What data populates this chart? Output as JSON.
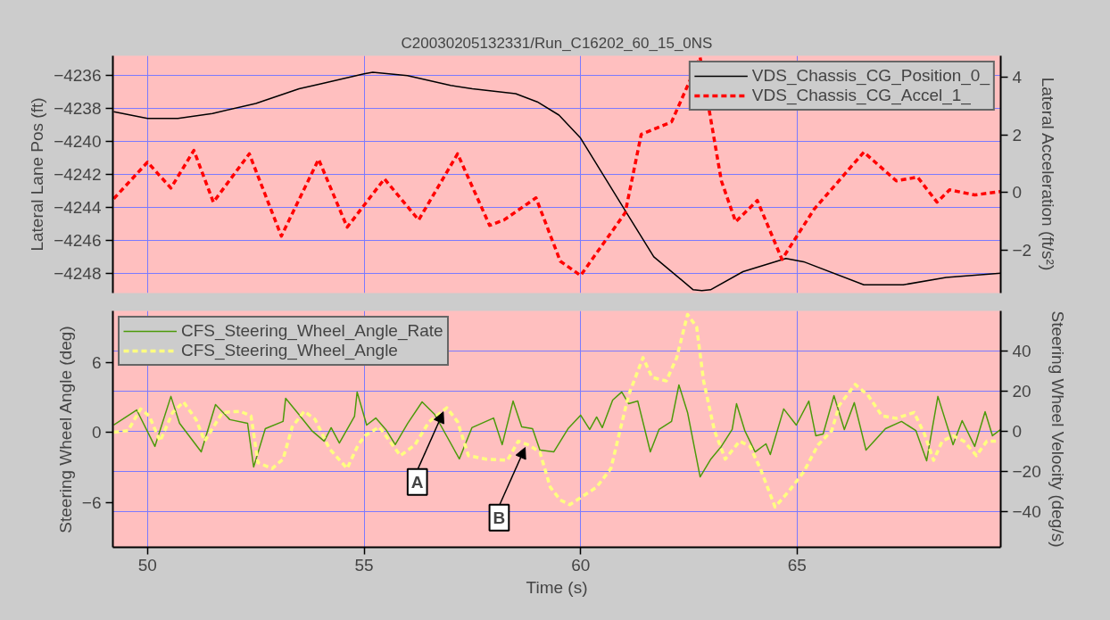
{
  "chart_data": [
    {
      "type": "line",
      "title": "C20030205132331/Run_C16202_60_15_0NS",
      "ylabel": "Lateral Lane Pos (ft)",
      "y2label": "Lateral Acceleration (ft/s²)",
      "xlim": [
        49.2,
        69.7
      ],
      "xticks": [
        50,
        55,
        60,
        65
      ],
      "ylim": [
        -4249.2,
        -4234.8
      ],
      "yticks": [
        -4236,
        -4238,
        -4240,
        -4242,
        -4244,
        -4246,
        -4248
      ],
      "y2lim": [
        -3.5,
        4.75
      ],
      "y2ticks": [
        4,
        2,
        0,
        -2
      ],
      "grid": true,
      "legend": "top right",
      "tick_labels": "y",
      "series": [
        {
          "name": "VDS_Chassis_CG_Position_0_",
          "color": "#000000",
          "line_style": "solid",
          "x": [
            49.22,
            50,
            50.7,
            51.5,
            52.5,
            53.5,
            54,
            55,
            55.2,
            56,
            57,
            57.5,
            58.5,
            59,
            59.5,
            60,
            61.03,
            61.69,
            62.6,
            62.8,
            63.0,
            63.75,
            64.74,
            65.15,
            66.54,
            67.45,
            68.44,
            69.7
          ],
          "values": [
            -4238.2,
            -4238.6,
            -4238.6,
            -4238.3,
            -4237.7,
            -4236.8,
            -4236.5,
            -4235.9,
            -4235.8,
            -4236.0,
            -4236.6,
            -4236.8,
            -4237.1,
            -4237.6,
            -4238.4,
            -4239.8,
            -4244.2,
            -4247.0,
            -4249.0,
            -4249.05,
            -4249.0,
            -4247.9,
            -4247.1,
            -4247.3,
            -4248.7,
            -4248.7,
            -4248.25,
            -4248.0
          ]
        },
        {
          "name": "VDS_Chassis_CG_Accel_1_",
          "color": "#ff0000",
          "line_style": "dashed",
          "axis": "y2",
          "x": [
            49.22,
            50.0,
            50.54,
            51.07,
            51.52,
            52.35,
            53.09,
            53.95,
            54.61,
            55.47,
            56.26,
            57.16,
            57.9,
            58.23,
            58.97,
            59.53,
            60.0,
            61.03,
            61.4,
            62.1,
            62.76,
            63.25,
            63.58,
            64.08,
            64.65,
            65.39,
            66.54,
            67.29,
            67.78,
            68.23,
            68.52,
            69.1,
            69.7
          ],
          "values": [
            -0.22,
            1.05,
            0.15,
            1.46,
            -0.34,
            1.34,
            -1.52,
            1.15,
            -1.21,
            0.47,
            -0.96,
            1.34,
            -1.15,
            -0.96,
            -0.19,
            -2.39,
            -2.89,
            -0.71,
            2.02,
            2.45,
            4.69,
            0.4,
            -1.02,
            -0.28,
            -2.33,
            -0.59,
            1.4,
            0.4,
            0.53,
            -0.34,
            0.09,
            -0.09,
            0.03
          ]
        }
      ]
    },
    {
      "type": "line",
      "xlabel": "Time (s)",
      "ylabel": "Steering Wheel Angle (deg)",
      "y2label": "Steering Wheel Velocity (deg/s)",
      "xlim": [
        49.2,
        69.7
      ],
      "xticks": [
        50,
        55,
        60,
        65
      ],
      "ylim": [
        -9.85,
        10.4
      ],
      "yticks": [
        6,
        0,
        -6
      ],
      "y2lim": [
        -57.5,
        59.7
      ],
      "y2ticks": [
        40,
        20,
        0,
        -20,
        -40
      ],
      "grid": true,
      "legend": "top left",
      "annotations": [
        {
          "text": "A",
          "x": 56.83,
          "y": 1.75
        },
        {
          "text": "B",
          "x": 58.72,
          "y": -1.3
        }
      ],
      "series": [
        {
          "name": "CFS_Steering_Wheel_Angle_Rate",
          "color": "#4c9a0a",
          "line_style": "solid",
          "axis": "y2",
          "x": [
            49.22,
            49.75,
            50.17,
            50.54,
            50.74,
            51.24,
            51.57,
            51.9,
            52.31,
            52.45,
            52.72,
            53.13,
            53.19,
            53.46,
            53.79,
            54.08,
            54.24,
            54.43,
            54.78,
            54.84,
            55.06,
            55.27,
            55.52,
            55.72,
            56.01,
            56.34,
            56.63,
            57.2,
            57.49,
            57.99,
            58.19,
            58.44,
            58.64,
            58.89,
            59.06,
            59.38,
            59.71,
            60.0,
            60.21,
            60.37,
            60.5,
            60.74,
            60.95,
            61.11,
            61.32,
            61.61,
            61.81,
            62.1,
            62.27,
            62.47,
            62.76,
            63.01,
            63.25,
            63.5,
            63.6,
            63.79,
            64.03,
            64.28,
            64.38,
            64.69,
            64.98,
            65.27,
            65.43,
            65.6,
            65.85,
            66.09,
            66.32,
            66.59,
            67.04,
            67.41,
            67.74,
            67.99,
            68.25,
            68.6,
            68.81,
            69.1,
            69.34,
            69.51,
            69.7
          ],
          "values": [
            3.1,
            10.6,
            -7.5,
            17.3,
            4.0,
            -10.2,
            13.3,
            5.8,
            4.0,
            -17.7,
            1.3,
            4.9,
            16.4,
            9.3,
            0.4,
            -4.9,
            1.8,
            -5.8,
            7.5,
            19.5,
            3.1,
            6.6,
            0.4,
            -6.6,
            4.0,
            14.6,
            8.4,
            -13.7,
            1.8,
            6.6,
            -6.6,
            15.0,
            2.2,
            1.3,
            -9.3,
            -10.2,
            1.3,
            8.0,
            0.9,
            7.1,
            1.8,
            15.5,
            19.5,
            13.7,
            15.0,
            -10.2,
            0.9,
            4.9,
            23.0,
            9.3,
            -22.6,
            -13.7,
            -7.5,
            0.9,
            13.7,
            0.4,
            -10.2,
            -6.2,
            -11.5,
            11.1,
            3.1,
            15.0,
            -2.2,
            -1.3,
            17.7,
            0.9,
            14.2,
            -9.3,
            1.3,
            4.9,
            0.4,
            -14.6,
            17.3,
            -6.6,
            5.3,
            -7.5,
            9.7,
            -2.2,
            0.9
          ]
        },
        {
          "name": "CFS_Steering_Wheel_Angle",
          "color": "#ffff80",
          "line_style": "dashed",
          "x": [
            49.22,
            49.55,
            49.84,
            50.04,
            50.29,
            50.58,
            50.83,
            51.12,
            51.32,
            51.73,
            52.14,
            52.39,
            52.55,
            52.88,
            53.13,
            53.34,
            53.62,
            53.87,
            54.2,
            54.61,
            54.86,
            55.02,
            55.35,
            55.84,
            56.17,
            56.5,
            56.91,
            57.16,
            57.41,
            57.82,
            58.31,
            58.56,
            58.81,
            59.06,
            59.3,
            59.53,
            59.75,
            60.0,
            60.37,
            60.7,
            60.91,
            61.11,
            61.44,
            61.65,
            61.98,
            62.22,
            62.47,
            62.68,
            62.84,
            63.09,
            63.34,
            63.67,
            63.91,
            64.16,
            64.49,
            64.82,
            65.15,
            65.48,
            65.8,
            65.97,
            66.34,
            66.63,
            66.96,
            67.29,
            67.7,
            67.94,
            68.15,
            68.35,
            68.6,
            68.85,
            69.14,
            69.38,
            69.59
          ],
          "values": [
            0.0,
            0.15,
            2.0,
            1.4,
            -0.76,
            1.7,
            2.6,
            1.1,
            -0.76,
            1.7,
            1.8,
            1.4,
            -2.6,
            -3.1,
            -2.3,
            0.46,
            1.8,
            1.1,
            -1.4,
            -3.1,
            -1.1,
            -0.3,
            0.46,
            -2.0,
            -1.1,
            0.9,
            2.1,
            0.9,
            -2.0,
            -2.3,
            -2.4,
            -0.76,
            -1.1,
            -1.7,
            -4.7,
            -5.8,
            -6.2,
            -5.6,
            -4.7,
            -3.1,
            0.15,
            3.2,
            6.4,
            4.7,
            4.4,
            6.4,
            10.1,
            9.0,
            4.4,
            0.15,
            -2.3,
            -0.76,
            -1.2,
            -3.2,
            -6.4,
            -5.0,
            -3.4,
            -1.1,
            0.15,
            2.3,
            4.1,
            3.2,
            1.4,
            1.2,
            1.7,
            -0.15,
            -2.4,
            -0.76,
            -0.3,
            -0.76,
            -2.0,
            -0.76,
            -0.76
          ]
        }
      ]
    }
  ]
}
